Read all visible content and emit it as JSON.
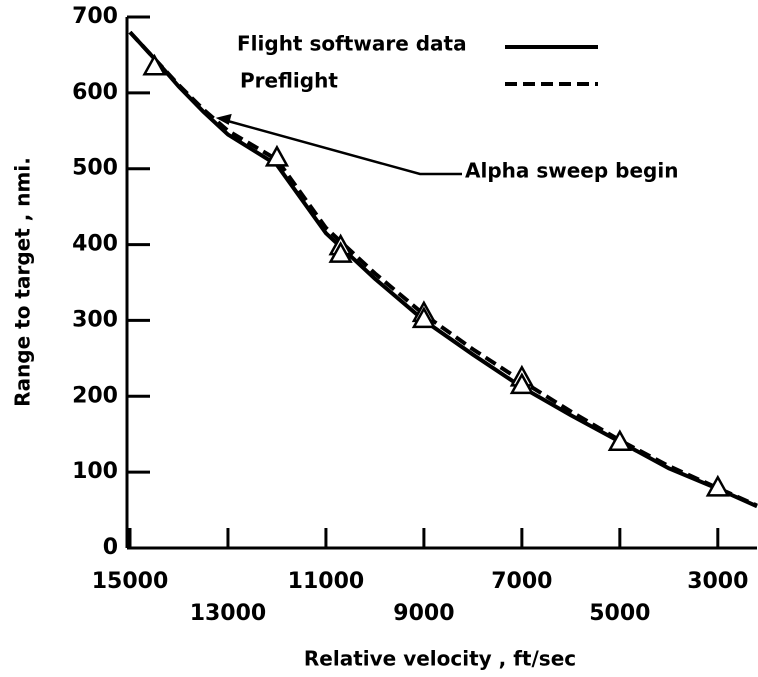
{
  "chart_data": {
    "type": "line",
    "xlabel": "Relative velocity , ft/sec",
    "ylabel": "Range to target , nmi.",
    "x": [
      15000,
      14500,
      14000,
      13500,
      13000,
      12000,
      11000,
      10000,
      9000,
      8000,
      7000,
      6000,
      5000,
      4000,
      3000,
      2200
    ],
    "series": [
      {
        "name": "Flight software data",
        "color": "#000000",
        "dash": false,
        "values": [
          680,
          645,
          608,
          575,
          545,
          505,
          415,
          355,
          300,
          255,
          212,
          175,
          140,
          105,
          78,
          55
        ]
      },
      {
        "name": "Preflight",
        "color": "#000000",
        "dash": true,
        "values": [
          680,
          645,
          610,
          578,
          550,
          512,
          422,
          362,
          308,
          262,
          220,
          180,
          142,
          108,
          79,
          56
        ]
      }
    ],
    "markers": {
      "x": [
        14500,
        12000,
        10700,
        10700,
        9000,
        9000,
        7000,
        7000,
        5000,
        3000
      ],
      "y": [
        635,
        515,
        398,
        388,
        310,
        302,
        225,
        215,
        140,
        80
      ]
    },
    "annotation": {
      "text": "Alpha sweep begin",
      "x": 13250,
      "y": 567
    },
    "xlim": [
      15000,
      2200
    ],
    "xticks": [
      15000,
      13000,
      11000,
      9000,
      7000,
      5000,
      3000
    ],
    "ylim": [
      0,
      700
    ],
    "yticks": [
      0,
      100,
      200,
      300,
      400,
      500,
      600,
      700
    ],
    "grid": false
  }
}
